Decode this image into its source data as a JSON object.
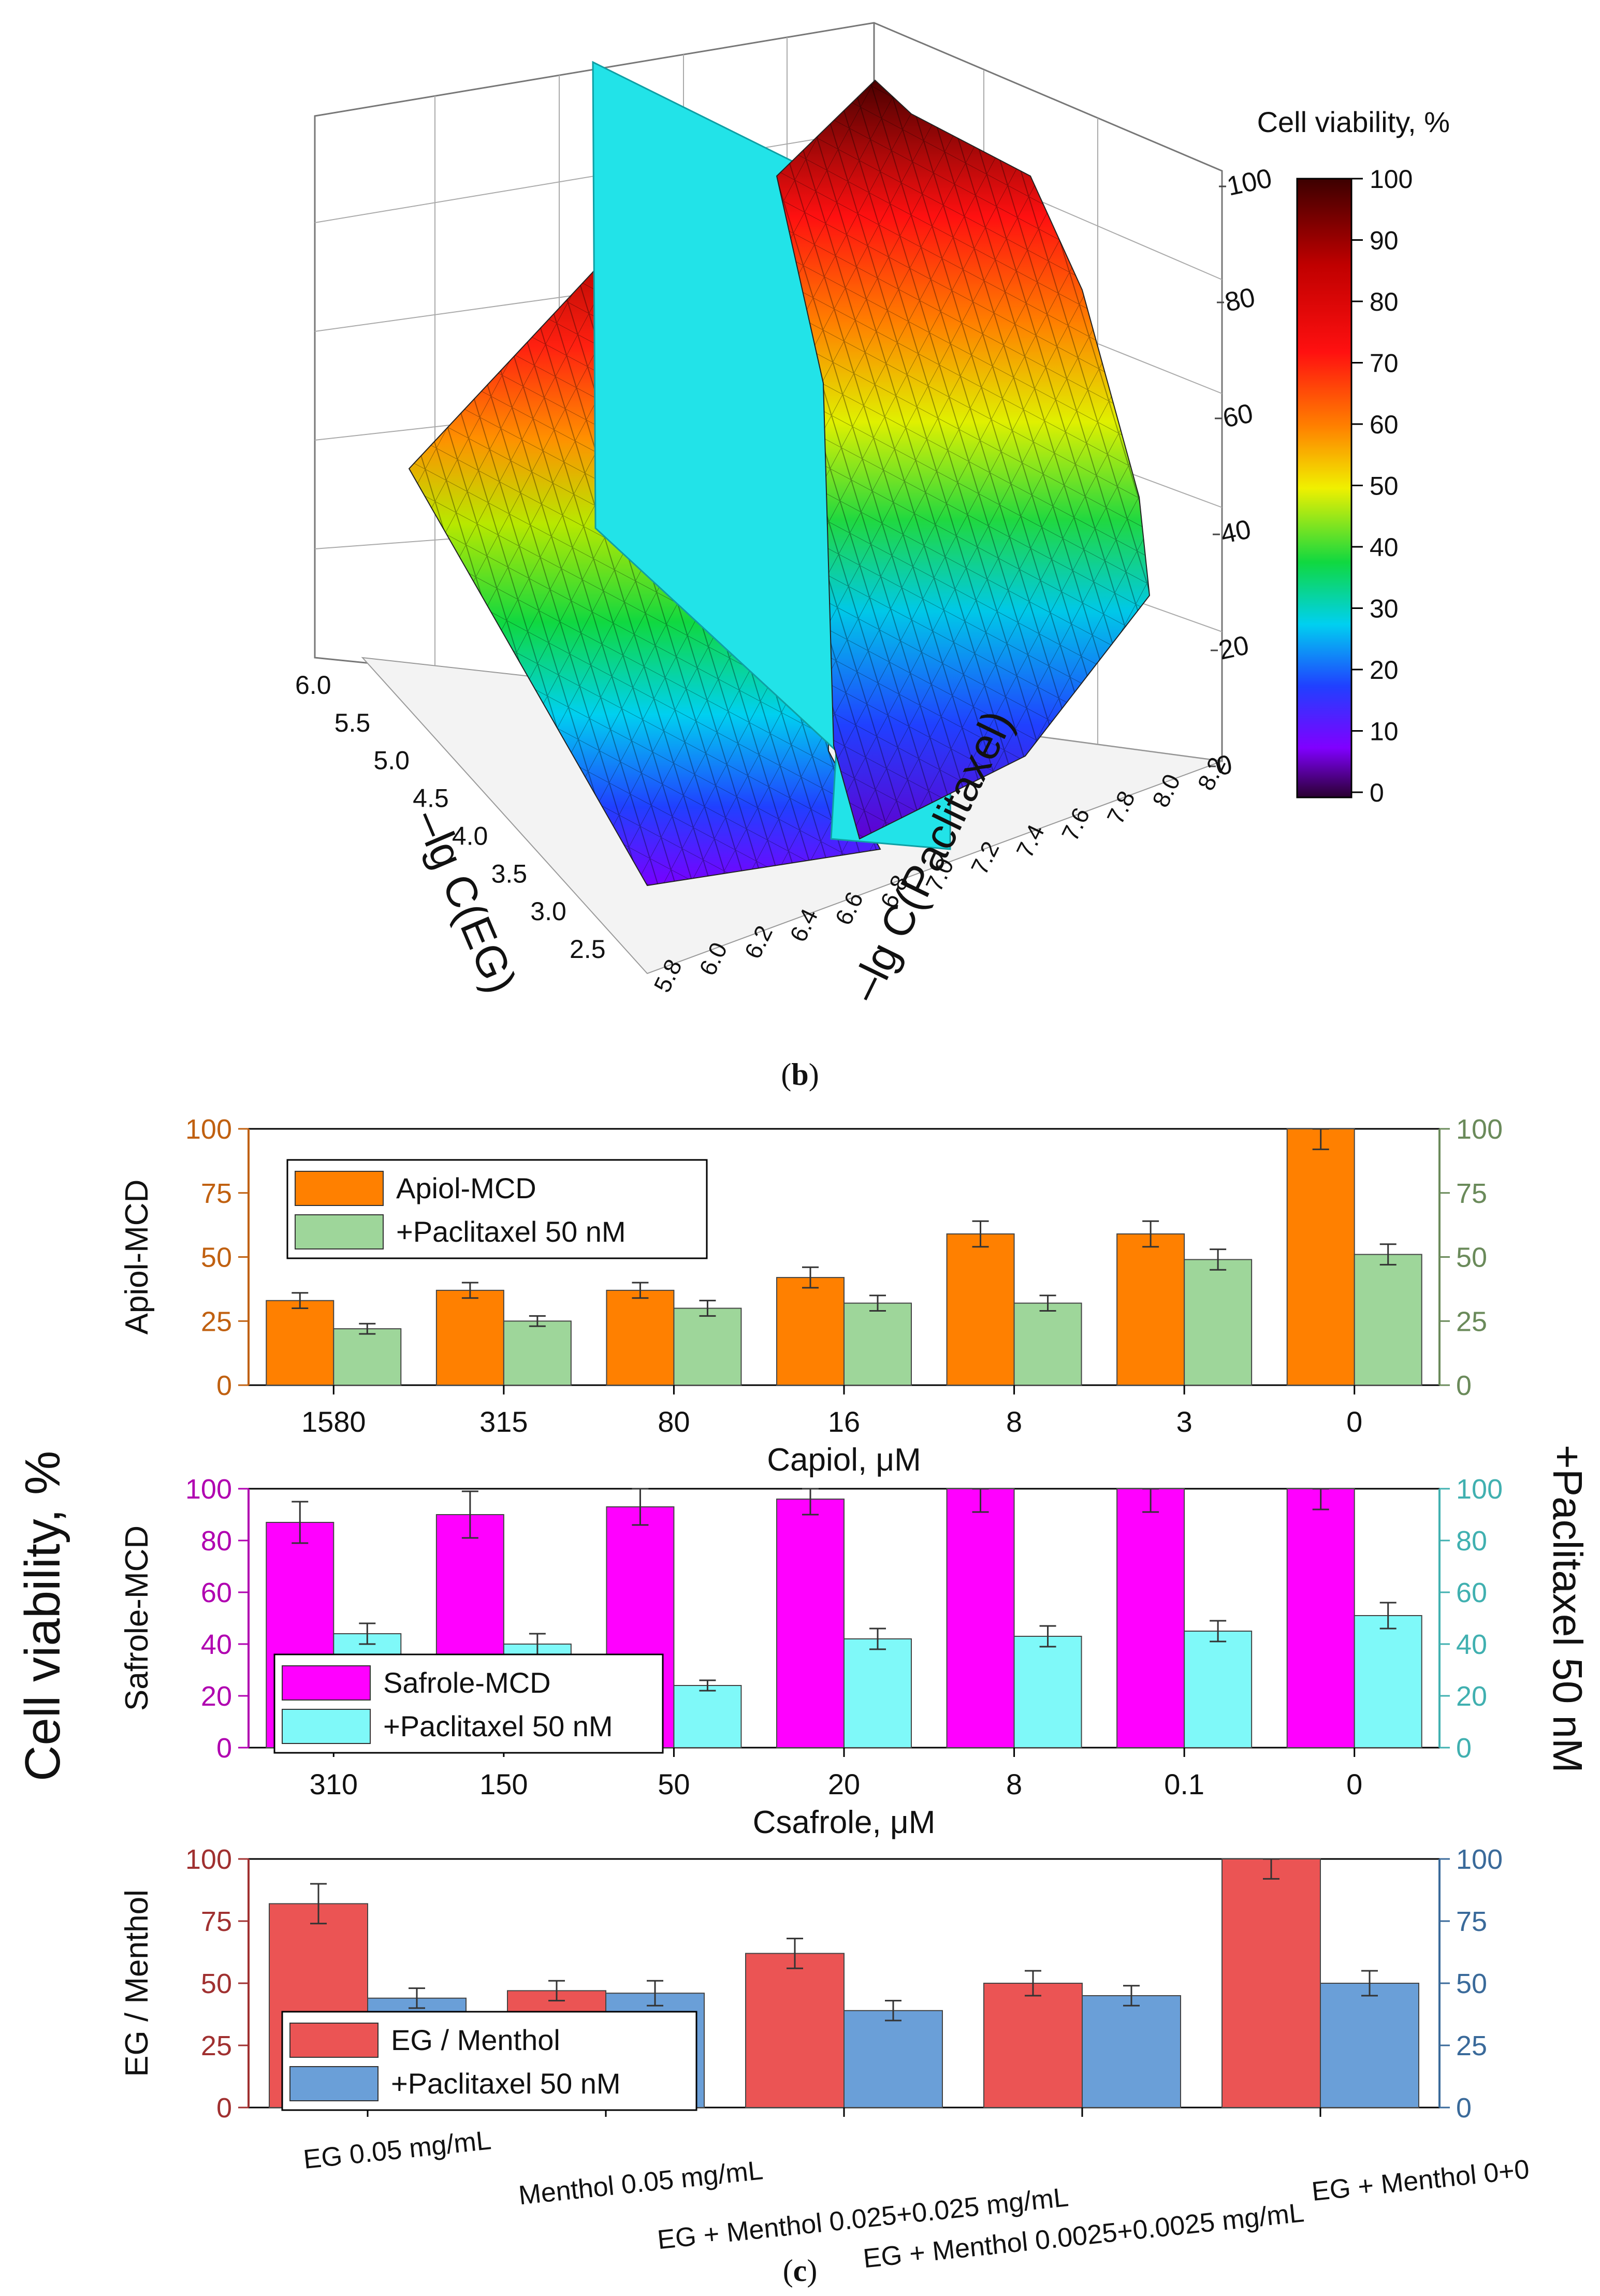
{
  "panel_b": {
    "label_open": "(",
    "label_letter": "b",
    "label_close": ")",
    "colorbar_title": "Cell viability, %",
    "colorbar_ticks": [
      "100",
      "90",
      "80",
      "70",
      "60",
      "50",
      "40",
      "30",
      "20",
      "10",
      "0"
    ],
    "z_ticks": [
      "100",
      "80",
      "60",
      "40",
      "20",
      "0"
    ],
    "x_ticks": [
      "5.8",
      "6.0",
      "6.2",
      "6.4",
      "6.6",
      "6.8",
      "7.0",
      "7.2",
      "7.4",
      "7.6",
      "7.8",
      "8.0",
      "8.2"
    ],
    "y_ticks": [
      "2.5",
      "3.0",
      "3.5",
      "4.0",
      "4.5",
      "5.0",
      "5.5",
      "6.0"
    ],
    "x_label": "–lg C(Paclitaxel)",
    "y_label": "–lg C(EG)",
    "colors": {
      "plane": "#22e3e8",
      "edge": "#1a1a1a"
    }
  },
  "panel_c": {
    "label_open": "(",
    "label_letter": "c",
    "label_close": ")",
    "shared_left_label": "Cell viability, %",
    "shared_right_label": "+Paclitaxel 50 nM"
  },
  "chart_data": [
    {
      "type": "surface3d",
      "title": "Cell viability, %",
      "xlabel": "–lg C(Paclitaxel)",
      "ylabel": "–lg C(EG)",
      "zlabel": "Cell viability, %",
      "xlim": [
        5.8,
        8.2
      ],
      "ylim": [
        2.5,
        6.0
      ],
      "zlim": [
        0,
        100
      ],
      "colorbar_range": [
        0,
        100
      ],
      "plane": {
        "axis": "x",
        "value": 7.0
      }
    },
    {
      "type": "bar",
      "ylabel_left": "Apiol-MCD",
      "xlabel": "Capiol, μM",
      "categories": [
        "1580",
        "315",
        "80",
        "16",
        "8",
        "3",
        "0"
      ],
      "ylim": [
        0,
        100
      ],
      "yticks": [
        "0",
        "25",
        "50",
        "75",
        "100"
      ],
      "axis_colors": {
        "left": "#c06010",
        "right": "#6a8a5a"
      },
      "series": [
        {
          "name": "Apiol-MCD",
          "color": "#ff8000",
          "values": [
            33,
            37,
            37,
            42,
            59,
            59,
            100
          ],
          "errors": [
            3,
            3,
            3,
            4,
            5,
            5,
            8
          ]
        },
        {
          "name": "+Paclitaxel 50 nM",
          "color": "#9ed69a",
          "values": [
            22,
            25,
            30,
            32,
            32,
            49,
            51
          ],
          "errors": [
            2,
            2,
            3,
            3,
            3,
            4,
            4
          ]
        }
      ],
      "legend": "top-left"
    },
    {
      "type": "bar",
      "ylabel_left": "Safrole-MCD",
      "xlabel": "Csafrole, μM",
      "categories": [
        "310",
        "150",
        "50",
        "20",
        "8",
        "0.1",
        "0"
      ],
      "ylim": [
        0,
        100
      ],
      "yticks": [
        "0",
        "20",
        "40",
        "60",
        "80",
        "100"
      ],
      "axis_colors": {
        "left": "#b000b0",
        "right": "#40b0b0"
      },
      "series": [
        {
          "name": "Safrole-MCD",
          "color": "#ff00ff",
          "values": [
            87,
            90,
            93,
            96,
            100,
            100,
            100
          ],
          "errors": [
            8,
            9,
            7,
            6,
            9,
            9,
            8
          ]
        },
        {
          "name": "+Paclitaxel 50 nM",
          "color": "#7ff9f9",
          "values": [
            44,
            40,
            24,
            42,
            43,
            45,
            51
          ],
          "errors": [
            4,
            4,
            2,
            4,
            4,
            4,
            5
          ]
        }
      ],
      "legend": "bottom-left"
    },
    {
      "type": "bar",
      "ylabel_left": "EG / Menthol",
      "xlabel": "",
      "categories": [
        "EG 0.05 mg/mL",
        "Menthol 0.05 mg/mL",
        "EG + Menthol 0.025+0.025 mg/mL",
        "EG + Menthol 0.0025+0.0025 mg/mL",
        "EG + Menthol 0+0"
      ],
      "ylim": [
        0,
        100
      ],
      "yticks": [
        "0",
        "25",
        "50",
        "75",
        "100"
      ],
      "axis_colors": {
        "left": "#a03030",
        "right": "#3a6a9a"
      },
      "series": [
        {
          "name": "EG / Menthol",
          "color": "#eb5454",
          "values": [
            82,
            47,
            62,
            50,
            100
          ],
          "errors": [
            8,
            4,
            6,
            5,
            8
          ]
        },
        {
          "name": "+Paclitaxel 50 nM",
          "color": "#6a9fd8",
          "values": [
            44,
            46,
            39,
            45,
            50
          ],
          "errors": [
            4,
            5,
            4,
            4,
            5
          ]
        }
      ],
      "legend": "bottom-left"
    }
  ]
}
